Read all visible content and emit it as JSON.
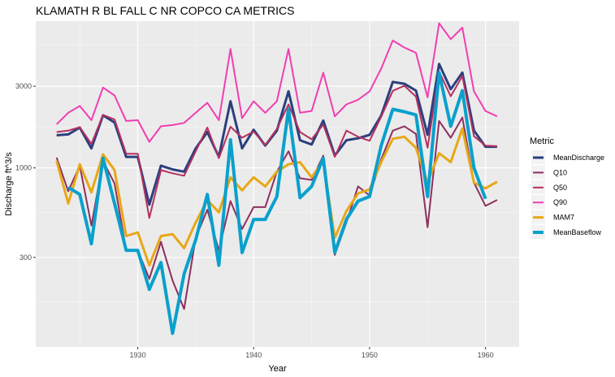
{
  "chart_data": {
    "type": "line",
    "title": "KLAMATH R BL FALL C NR COPCO CA  METRICS",
    "xlabel": "Year",
    "ylabel": "Discharge ft^3/s",
    "y_scale": "log",
    "xlim": [
      1921.2,
      1962.9
    ],
    "ylim": [
      90,
      7200
    ],
    "x_ticks": [
      1930,
      1940,
      1950,
      1960
    ],
    "y_ticks": [
      300,
      1000,
      3000
    ],
    "grid": true,
    "legend_position": "right",
    "legend_title": "Metric",
    "series": [
      {
        "name": "MeanDischarge",
        "color": "#2b3f7e",
        "width": 3,
        "x": [
          1923,
          1924,
          1925,
          1926,
          1927,
          1928,
          1929,
          1930,
          1931,
          1932,
          1933,
          1934,
          1935,
          1936,
          1937,
          1938,
          1939,
          1940,
          1941,
          1942,
          1943,
          1944,
          1945,
          1946,
          1947,
          1948,
          1949,
          1950,
          1951,
          1952,
          1953,
          1954,
          1955,
          1956,
          1957,
          1958,
          1959,
          1960,
          1961
        ],
        "values": [
          1550,
          1570,
          1720,
          1300,
          2030,
          1840,
          1160,
          1160,
          610,
          1030,
          980,
          950,
          1300,
          1620,
          1160,
          2450,
          1300,
          1670,
          1350,
          1650,
          2800,
          1450,
          1370,
          1890,
          1180,
          1450,
          1490,
          1560,
          2020,
          3180,
          3100,
          2830,
          1560,
          4050,
          2880,
          3600,
          1650,
          1330,
          1330
        ]
      },
      {
        "name": "Q10",
        "color": "#8e2f5f",
        "width": 2,
        "x": [
          1923,
          1924,
          1925,
          1926,
          1927,
          1928,
          1929,
          1930,
          1931,
          1932,
          1933,
          1934,
          1935,
          1936,
          1937,
          1938,
          1939,
          1940,
          1941,
          1942,
          1943,
          1944,
          1945,
          1946,
          1947,
          1948,
          1949,
          1950,
          1951,
          1952,
          1953,
          1954,
          1955,
          1956,
          1957,
          1958,
          1959,
          1960,
          1961
        ],
        "values": [
          1150,
          730,
          1030,
          460,
          1100,
          810,
          330,
          330,
          225,
          370,
          220,
          150,
          390,
          570,
          330,
          640,
          440,
          590,
          590,
          950,
          1250,
          870,
          850,
          1180,
          310,
          480,
          780,
          690,
          1120,
          1650,
          1750,
          1580,
          450,
          1880,
          1500,
          1970,
          820,
          600,
          650
        ]
      },
      {
        "name": "Q50",
        "color": "#b5305f",
        "width": 2,
        "x": [
          1923,
          1924,
          1925,
          1926,
          1927,
          1928,
          1929,
          1930,
          1931,
          1932,
          1933,
          1934,
          1935,
          1936,
          1937,
          1938,
          1939,
          1940,
          1941,
          1942,
          1943,
          1944,
          1945,
          1946,
          1947,
          1948,
          1949,
          1950,
          1951,
          1952,
          1953,
          1954,
          1955,
          1956,
          1957,
          1958,
          1959,
          1960,
          1961
        ],
        "values": [
          1620,
          1650,
          1730,
          1380,
          2040,
          1920,
          1210,
          1210,
          510,
          970,
          930,
          900,
          1250,
          1720,
          1140,
          1740,
          1500,
          1630,
          1360,
          1690,
          2350,
          1620,
          1470,
          1790,
          1160,
          1650,
          1520,
          1440,
          1990,
          2820,
          3020,
          2610,
          1310,
          3650,
          2620,
          3440,
          1530,
          1350,
          1340
        ]
      },
      {
        "name": "Q90",
        "color": "#f03eb1",
        "width": 2,
        "x": [
          1923,
          1924,
          1925,
          1926,
          1927,
          1928,
          1929,
          1930,
          1931,
          1932,
          1933,
          1934,
          1935,
          1936,
          1937,
          1938,
          1939,
          1940,
          1941,
          1942,
          1943,
          1944,
          1945,
          1946,
          1947,
          1948,
          1949,
          1950,
          1951,
          1952,
          1953,
          1954,
          1955,
          1956,
          1957,
          1958,
          1959,
          1960,
          1961
        ],
        "values": [
          1800,
          2100,
          2300,
          1900,
          2950,
          2650,
          1880,
          1900,
          1420,
          1750,
          1780,
          1830,
          2100,
          2400,
          1900,
          4950,
          1950,
          2450,
          2100,
          2450,
          4950,
          2100,
          2150,
          3600,
          2000,
          2350,
          2500,
          2800,
          3800,
          5550,
          5050,
          4700,
          2580,
          7000,
          5650,
          6600,
          2800,
          2150,
          2000
        ]
      },
      {
        "name": "MAM7",
        "color": "#e8a715",
        "width": 3,
        "x": [
          1923,
          1924,
          1925,
          1926,
          1927,
          1928,
          1929,
          1930,
          1931,
          1932,
          1933,
          1934,
          1935,
          1936,
          1937,
          1938,
          1939,
          1940,
          1941,
          1942,
          1943,
          1944,
          1945,
          1946,
          1947,
          1948,
          1949,
          1950,
          1951,
          1952,
          1953,
          1954,
          1955,
          1956,
          1957,
          1958,
          1959,
          1960,
          1961
        ],
        "values": [
          1100,
          620,
          1050,
          720,
          1200,
          970,
          400,
          420,
          270,
          400,
          410,
          340,
          480,
          650,
          550,
          880,
          740,
          880,
          780,
          950,
          1050,
          1080,
          880,
          1100,
          390,
          560,
          710,
          750,
          1080,
          1480,
          1520,
          1310,
          820,
          1220,
          1080,
          1700,
          820,
          760,
          830
        ]
      },
      {
        "name": "MeanBaseflow",
        "color": "#0aa0cc",
        "width": 4,
        "x": [
          1924,
          1925,
          1926,
          1927,
          1928,
          1929,
          1930,
          1931,
          1932,
          1933,
          1934,
          1935,
          1936,
          1937,
          1938,
          1939,
          1940,
          1941,
          1942,
          1943,
          1944,
          1945,
          1946,
          1947,
          1948,
          1949,
          1950,
          1951,
          1952,
          1953,
          1954,
          1955,
          1956,
          1957,
          1958,
          1959,
          1960
        ],
        "values": [
          770,
          700,
          360,
          1140,
          620,
          330,
          330,
          195,
          280,
          108,
          240,
          380,
          700,
          270,
          1460,
          320,
          500,
          500,
          680,
          2210,
          670,
          780,
          1140,
          320,
          500,
          640,
          680,
          1350,
          2200,
          2130,
          2040,
          680,
          3600,
          1750,
          2830,
          1000,
          660
        ]
      }
    ]
  }
}
